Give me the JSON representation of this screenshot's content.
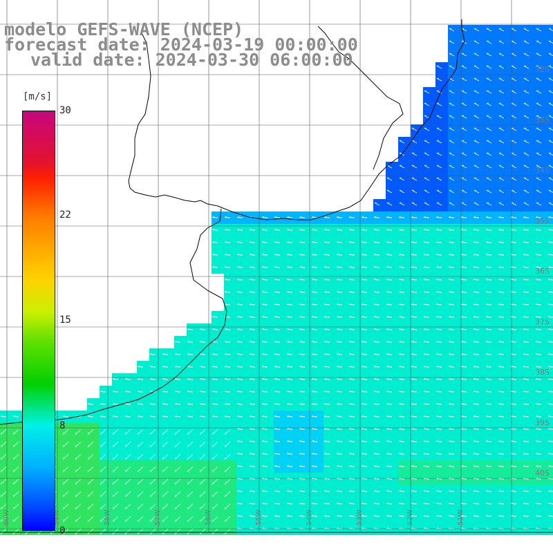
{
  "title": {
    "line1": "modelo GEFS-WAVE (NCEP)",
    "line2": "forecast date: 2024-03-19 00:00:00",
    "line3": "valid date: 2024-03-30 06:00:00"
  },
  "colorbar": {
    "units": "[m/s]",
    "ticks": [
      "30",
      "22",
      "15",
      "8",
      "0"
    ],
    "tick_values": [
      30,
      22,
      15,
      8,
      0
    ],
    "min": 0,
    "max": 30
  },
  "lat_labels": [
    "32S",
    "33S",
    "34S",
    "35S",
    "36S",
    "37S",
    "38S",
    "39S",
    "40S"
  ],
  "lon_labels": [
    "60W",
    "59W",
    "58W",
    "57W",
    "56W",
    "55W",
    "54W",
    "53W",
    "52W",
    "51W"
  ],
  "field": {
    "variable": "wind speed",
    "units": "m/s",
    "typical_range": [
      5,
      13
    ],
    "arrow_direction": "westward / south-westward onshore flow",
    "land_color": "#ffffff"
  }
}
